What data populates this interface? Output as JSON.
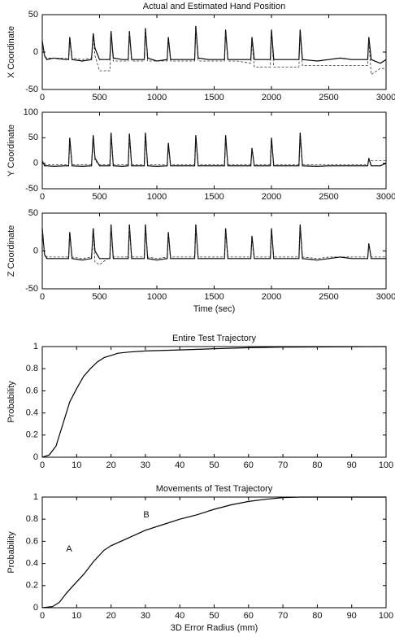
{
  "chart_data": [
    {
      "type": "line",
      "title": "Actual and Estimated Hand Position",
      "ylabel": "X Coordinate",
      "x": [
        0,
        20,
        40,
        100,
        200,
        230,
        240,
        260,
        350,
        430,
        445,
        460,
        500,
        590,
        600,
        620,
        700,
        750,
        760,
        780,
        850,
        890,
        900,
        920,
        1000,
        1090,
        1100,
        1120,
        1200,
        1330,
        1340,
        1360,
        1450,
        1590,
        1600,
        1620,
        1700,
        1820,
        1830,
        1850,
        1950,
        1990,
        2000,
        2020,
        2100,
        2240,
        2250,
        2270,
        2400,
        2500,
        2600,
        2700,
        2840,
        2850,
        2870,
        2950,
        3000
      ],
      "series": [
        {
          "color": "#000000",
          "style": "solid",
          "values": [
            15,
            -5,
            -10,
            -8,
            -10,
            -10,
            20,
            -10,
            -12,
            -10,
            25,
            5,
            -10,
            -10,
            28,
            -8,
            -10,
            -10,
            28,
            -10,
            -10,
            -10,
            32,
            -8,
            -12,
            -10,
            20,
            -10,
            -10,
            -10,
            35,
            -8,
            -10,
            -10,
            30,
            -10,
            -10,
            -10,
            20,
            -10,
            -10,
            -10,
            30,
            -10,
            -10,
            -10,
            30,
            -10,
            -12,
            -10,
            -8,
            -10,
            -10,
            20,
            -10,
            -15,
            -10
          ]
        },
        {
          "color": "#333333",
          "style": "dashed",
          "values": [
            10,
            -5,
            -8,
            -8,
            -8,
            -8,
            15,
            -8,
            -10,
            -8,
            20,
            -5,
            -25,
            -25,
            22,
            -12,
            -12,
            -12,
            25,
            -12,
            -12,
            -12,
            28,
            -12,
            -12,
            -12,
            15,
            -12,
            -12,
            -12,
            30,
            -12,
            -12,
            -12,
            25,
            -12,
            -12,
            -15,
            15,
            -20,
            -20,
            -20,
            25,
            -20,
            -20,
            -20,
            25,
            -18,
            -18,
            -18,
            -18,
            -18,
            -18,
            15,
            -30,
            -22,
            -22
          ]
        }
      ],
      "xlim": [
        0,
        3000
      ],
      "xticks": [
        0,
        500,
        1000,
        1500,
        2000,
        2500,
        3000
      ],
      "ylim": [
        -50,
        50
      ],
      "yticks": [
        -50,
        0,
        50
      ]
    },
    {
      "type": "line",
      "ylabel": "Y Coordinate",
      "x": [
        0,
        20,
        40,
        100,
        200,
        230,
        240,
        260,
        350,
        430,
        445,
        460,
        500,
        590,
        600,
        620,
        700,
        750,
        760,
        780,
        850,
        890,
        900,
        920,
        1000,
        1090,
        1100,
        1120,
        1200,
        1330,
        1340,
        1360,
        1450,
        1590,
        1600,
        1620,
        1700,
        1820,
        1830,
        1850,
        1950,
        1990,
        2000,
        2020,
        2100,
        2240,
        2250,
        2270,
        2400,
        2500,
        2600,
        2700,
        2840,
        2850,
        2870,
        2950,
        3000
      ],
      "series": [
        {
          "color": "#000000",
          "style": "solid",
          "values": [
            5,
            -5,
            -5,
            -6,
            -5,
            -5,
            50,
            -5,
            -6,
            -5,
            55,
            10,
            -5,
            -5,
            60,
            -5,
            -6,
            -5,
            58,
            -5,
            -5,
            -5,
            60,
            -5,
            -6,
            -5,
            40,
            -5,
            -5,
            -5,
            55,
            -5,
            -5,
            -5,
            55,
            -5,
            -5,
            -5,
            30,
            -5,
            -5,
            -5,
            50,
            -5,
            -5,
            -5,
            60,
            -5,
            -6,
            -5,
            -5,
            -5,
            -5,
            10,
            -5,
            -5,
            0
          ]
        },
        {
          "color": "#333333",
          "style": "dashed",
          "values": [
            5,
            -3,
            -3,
            -3,
            -3,
            -3,
            40,
            -3,
            -3,
            -3,
            45,
            5,
            -3,
            -3,
            50,
            -3,
            -3,
            -3,
            50,
            -3,
            -3,
            -3,
            50,
            -3,
            -3,
            -3,
            30,
            -3,
            -3,
            -3,
            45,
            -3,
            -3,
            -3,
            45,
            -3,
            -3,
            -3,
            25,
            -3,
            -3,
            -3,
            40,
            -3,
            -3,
            -3,
            50,
            -3,
            -3,
            -3,
            -3,
            -3,
            -3,
            8,
            5,
            5,
            5
          ]
        }
      ],
      "xlim": [
        0,
        3000
      ],
      "xticks": [
        0,
        500,
        1000,
        1500,
        2000,
        2500,
        3000
      ],
      "ylim": [
        -50,
        100
      ],
      "yticks": [
        -50,
        0,
        50,
        100
      ]
    },
    {
      "type": "line",
      "ylabel": "Z Coordinate",
      "xlabel": "Time (sec)",
      "x": [
        0,
        20,
        40,
        100,
        200,
        230,
        240,
        260,
        350,
        430,
        445,
        460,
        500,
        590,
        600,
        620,
        700,
        750,
        760,
        780,
        850,
        890,
        900,
        920,
        1000,
        1090,
        1100,
        1120,
        1200,
        1330,
        1340,
        1360,
        1450,
        1590,
        1600,
        1620,
        1700,
        1820,
        1830,
        1850,
        1950,
        1990,
        2000,
        2020,
        2100,
        2240,
        2250,
        2270,
        2400,
        2500,
        2600,
        2700,
        2840,
        2850,
        2870,
        2950,
        3000
      ],
      "series": [
        {
          "color": "#000000",
          "style": "solid",
          "values": [
            30,
            -5,
            -10,
            -10,
            -10,
            -10,
            25,
            -10,
            -12,
            -10,
            30,
            0,
            -10,
            -10,
            35,
            -10,
            -10,
            -10,
            35,
            -10,
            -10,
            -10,
            35,
            -10,
            -12,
            -10,
            25,
            -10,
            -10,
            -10,
            35,
            -10,
            -10,
            -10,
            30,
            -10,
            -10,
            -10,
            20,
            -10,
            -10,
            -10,
            30,
            -10,
            -10,
            -10,
            35,
            -10,
            -12,
            -10,
            -8,
            -10,
            -10,
            10,
            -10,
            -10,
            -10
          ]
        },
        {
          "color": "#333333",
          "style": "dashed",
          "values": [
            25,
            -5,
            -8,
            -8,
            -8,
            -8,
            20,
            -8,
            -10,
            -8,
            25,
            -15,
            -18,
            -8,
            30,
            -8,
            -8,
            -8,
            30,
            -8,
            -8,
            -8,
            30,
            -8,
            -10,
            -8,
            20,
            -8,
            -8,
            -8,
            30,
            -8,
            -8,
            -8,
            25,
            -8,
            -8,
            -8,
            15,
            -8,
            -8,
            -8,
            25,
            -8,
            -8,
            -8,
            30,
            -8,
            -10,
            -8,
            -8,
            -8,
            -8,
            8,
            -8,
            -8,
            -8
          ]
        }
      ],
      "xlim": [
        0,
        3000
      ],
      "xticks": [
        0,
        500,
        1000,
        1500,
        2000,
        2500,
        3000
      ],
      "ylim": [
        -50,
        50
      ],
      "yticks": [
        -50,
        0,
        50
      ]
    },
    {
      "type": "line",
      "title": "Entire Test Trajectory",
      "ylabel": "Probability",
      "x": [
        0,
        2,
        4,
        6,
        8,
        10,
        12,
        14,
        16,
        18,
        20,
        22,
        25,
        30,
        40,
        50,
        60,
        70,
        100
      ],
      "series": [
        {
          "color": "#000000",
          "style": "solid",
          "values": [
            0,
            0.02,
            0.1,
            0.3,
            0.5,
            0.62,
            0.73,
            0.8,
            0.86,
            0.9,
            0.92,
            0.94,
            0.95,
            0.96,
            0.97,
            0.98,
            0.99,
            0.995,
            1
          ]
        }
      ],
      "xlim": [
        0,
        100
      ],
      "xticks": [
        0,
        10,
        20,
        30,
        40,
        50,
        60,
        70,
        80,
        90,
        100
      ],
      "ylim": [
        0,
        1
      ],
      "yticks": [
        0,
        0.2,
        0.4,
        0.6,
        0.8,
        1
      ]
    },
    {
      "type": "line",
      "title": "Movements of Test Trajectory",
      "ylabel": "Probability",
      "xlabel": "3D Error Radius (mm)",
      "annotations": [
        "A",
        "B"
      ],
      "x": [
        0,
        3,
        5,
        7,
        9,
        12,
        15,
        18,
        20,
        25,
        30,
        35,
        40,
        45,
        50,
        55,
        60,
        65,
        70,
        75,
        100
      ],
      "series": [
        {
          "color": "#000000",
          "style": "solid",
          "values": [
            0,
            0.01,
            0.05,
            0.13,
            0.2,
            0.3,
            0.42,
            0.52,
            0.56,
            0.63,
            0.7,
            0.75,
            0.8,
            0.84,
            0.89,
            0.93,
            0.96,
            0.98,
            0.995,
            1,
            1
          ]
        }
      ],
      "xlim": [
        0,
        100
      ],
      "xticks": [
        0,
        10,
        20,
        30,
        40,
        50,
        60,
        70,
        80,
        90,
        100
      ],
      "ylim": [
        0,
        1
      ],
      "yticks": [
        0,
        0.2,
        0.4,
        0.6,
        0.8,
        1
      ]
    }
  ]
}
